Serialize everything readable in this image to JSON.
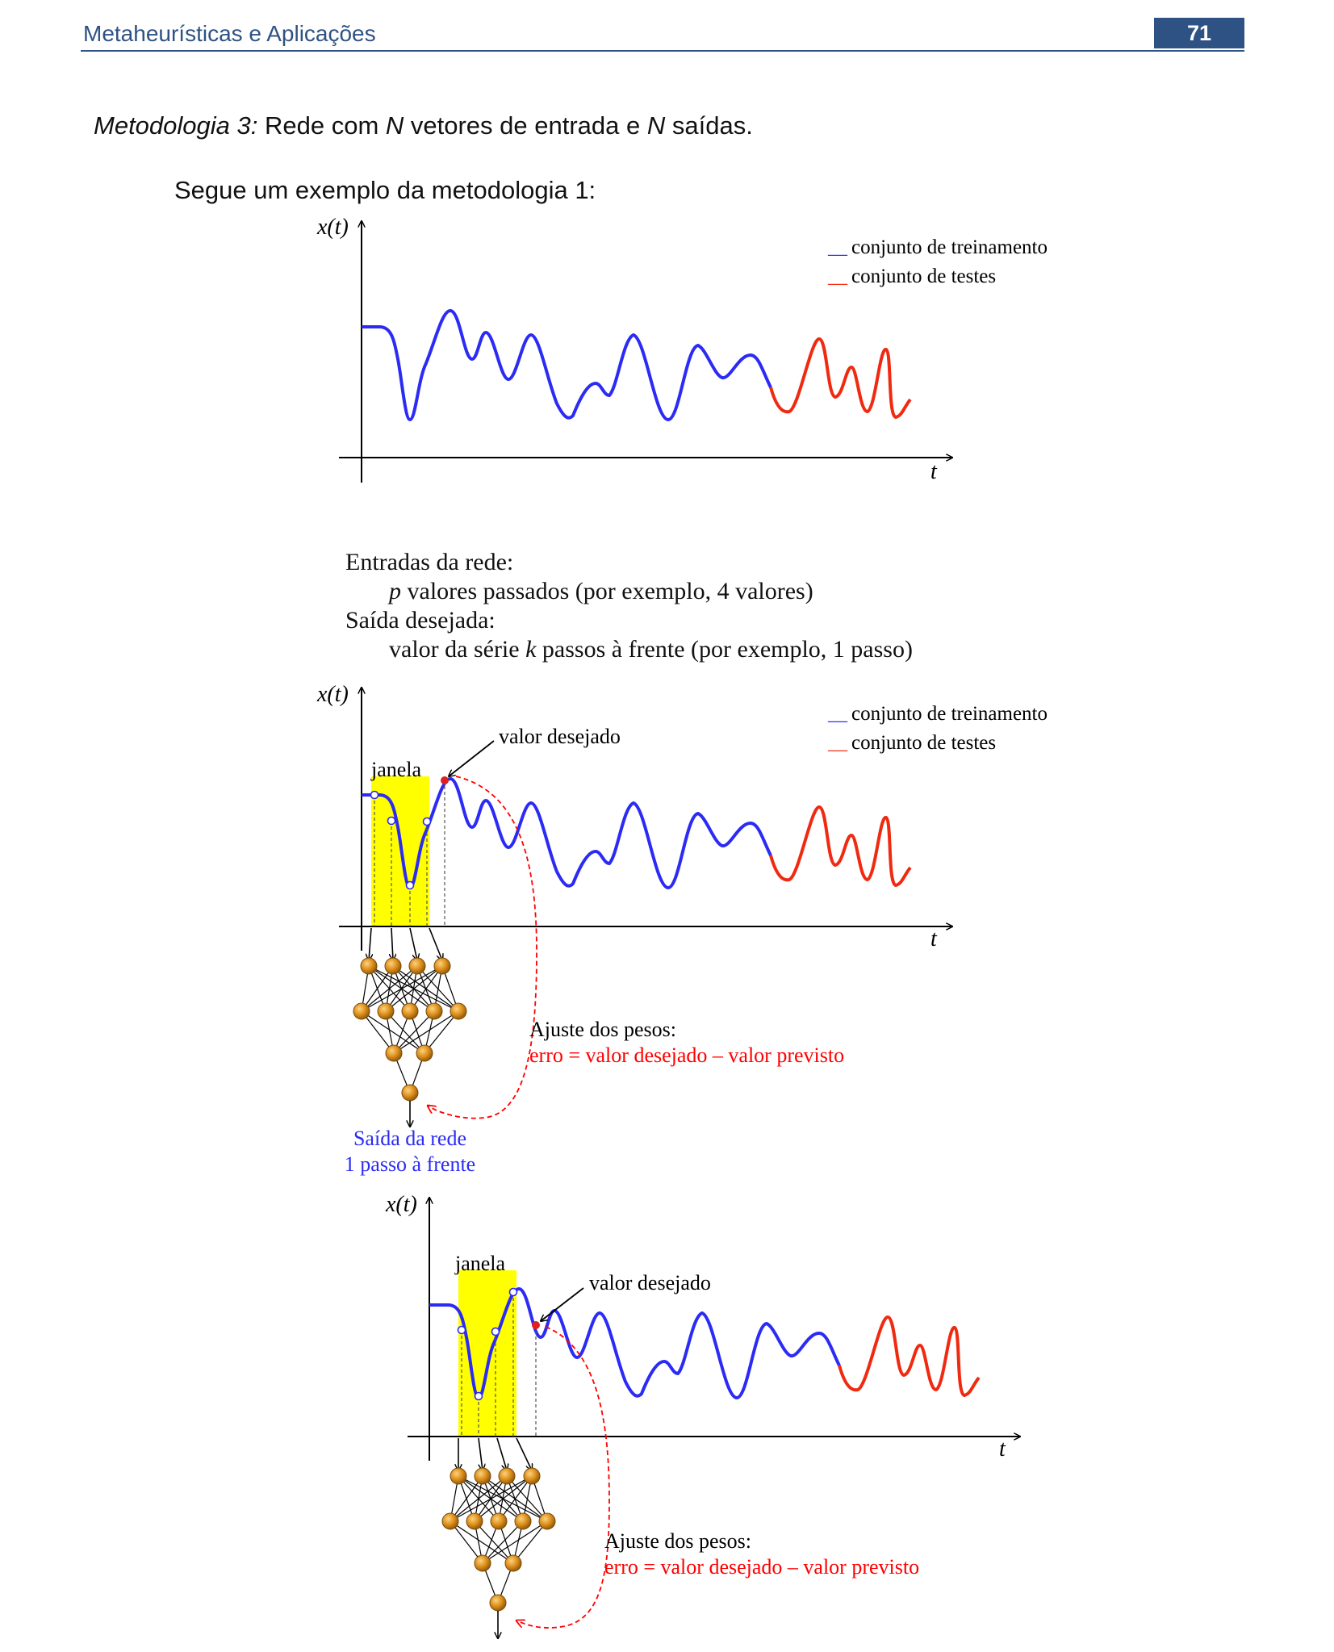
{
  "header": {
    "title": "Metaheurísticas e Aplicações",
    "page_number": "71"
  },
  "method": {
    "label": "Metodologia 3:",
    "part1": " Rede com ",
    "N1": "N",
    "part2": " vetores de entrada e ",
    "N2": "N",
    "part3": " saídas."
  },
  "example_intro": "Segue um exemplo da metodologia 1:",
  "axis": {
    "y_label": "x(t)",
    "x_label": "t"
  },
  "legend": {
    "marker": "__",
    "training": "conjunto de treinamento",
    "testing": "conjunto de testes"
  },
  "colors": {
    "training": "#2b2bf5",
    "testing": "#f02a10",
    "window": "#ffff00",
    "error": "#ff0000",
    "neuron": "#d98c1a",
    "header": "#2e5283"
  },
  "network_inputs": {
    "heading": "Entradas da rede:",
    "p_var": "p",
    "p_text": " valores passados (por exemplo, 4 valores)",
    "desired_heading": "Saída desejada:",
    "desired_text_a": "valor da série ",
    "k_var": "k",
    "desired_text_b": " passos à frente (por exemplo, 1 passo)"
  },
  "diagram": {
    "window_label": "janela",
    "desired_value_label": "valor desejado",
    "adjust_title": "Ajuste dos pesos:",
    "error_formula": "erro = valor desejado – valor previsto",
    "output_line1": "Saída da rede",
    "output_line2": "1 passo à frente",
    "network_layers": [
      4,
      5,
      2,
      1
    ]
  }
}
